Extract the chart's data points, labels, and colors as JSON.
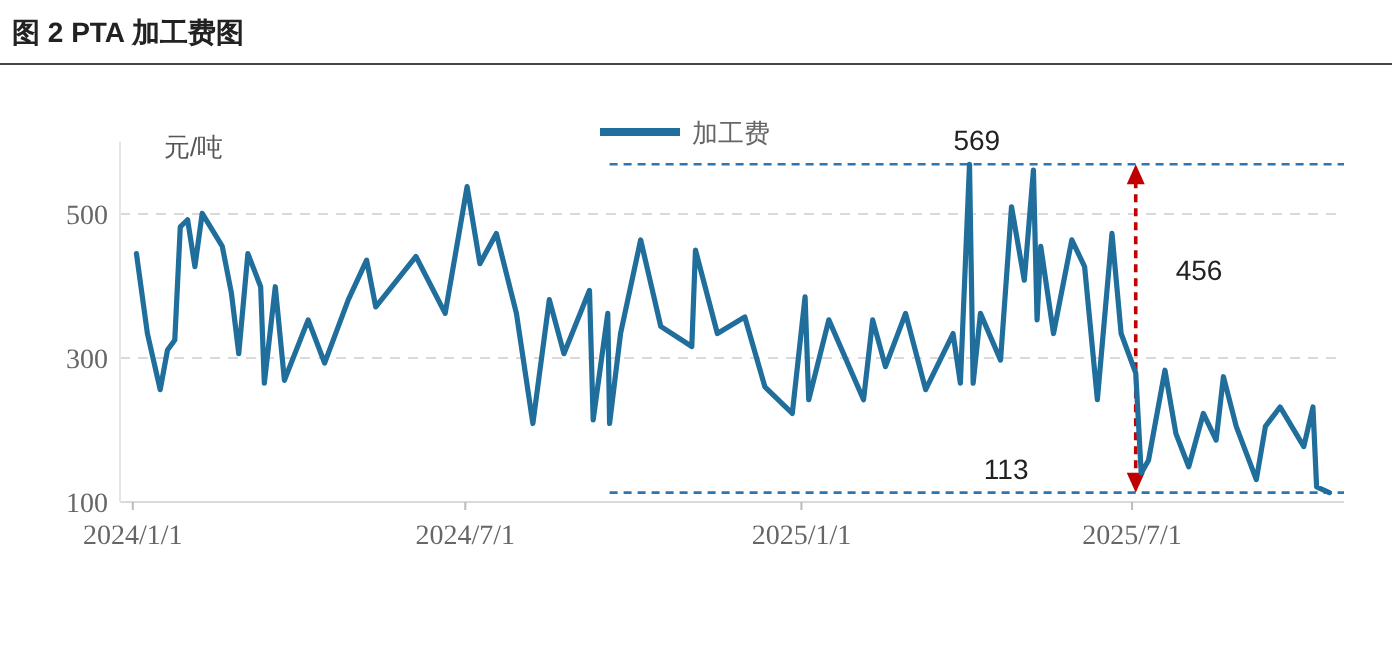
{
  "chart_data": {
    "type": "line",
    "title": "图 2 PTA 加工费图",
    "ylabel": "元/吨",
    "x": [
      "2024-01-03",
      "2024-01-09",
      "2024-01-16",
      "2024-01-20",
      "2024-01-24",
      "2024-01-27",
      "2024-01-31",
      "2024-02-04",
      "2024-02-08",
      "2024-02-19",
      "2024-02-24",
      "2024-02-28",
      "2024-03-04",
      "2024-03-11",
      "2024-03-13",
      "2024-03-19",
      "2024-03-24",
      "2024-04-06",
      "2024-04-15",
      "2024-04-28",
      "2024-05-08",
      "2024-05-13",
      "2024-06-04",
      "2024-06-20",
      "2024-07-02",
      "2024-07-09",
      "2024-07-18",
      "2024-07-29",
      "2024-08-07",
      "2024-08-16",
      "2024-08-24",
      "2024-09-07",
      "2024-09-09",
      "2024-09-17",
      "2024-09-18",
      "2024-09-24",
      "2024-10-05",
      "2024-10-16",
      "2024-11-02",
      "2024-11-04",
      "2024-11-16",
      "2024-12-01",
      "2024-12-12",
      "2024-12-27",
      "2025-01-03",
      "2025-01-05",
      "2025-01-16",
      "2025-02-04",
      "2025-02-09",
      "2025-02-16",
      "2025-02-27",
      "2025-03-10",
      "2025-03-25",
      "2025-03-29",
      "2025-04-03",
      "2025-04-05",
      "2025-04-09",
      "2025-04-20",
      "2025-04-26",
      "2025-05-03",
      "2025-05-08",
      "2025-05-10",
      "2025-05-12",
      "2025-05-19",
      "2025-05-29",
      "2025-06-05",
      "2025-06-12",
      "2025-06-20",
      "2025-06-25",
      "2025-07-03",
      "2025-07-06",
      "2025-07-10",
      "2025-07-19",
      "2025-07-25",
      "2025-08-01",
      "2025-08-09",
      "2025-08-16",
      "2025-08-20",
      "2025-08-27",
      "2025-09-07",
      "2025-09-12",
      "2025-09-20",
      "2025-10-03",
      "2025-10-08",
      "2025-10-10",
      "2025-10-17"
    ],
    "series": [
      {
        "name": "加工费",
        "color": "#1f6e9c",
        "values": [
          445,
          334,
          256,
          311,
          325,
          482,
          492,
          427,
          501,
          455,
          390,
          306,
          445,
          399,
          265,
          399,
          269,
          353,
          293,
          381,
          436,
          371,
          441,
          362,
          538,
          431,
          473,
          362,
          209,
          381,
          306,
          394,
          214,
          362,
          209,
          334,
          464,
          344,
          316,
          450,
          334,
          357,
          260,
          223,
          385,
          242,
          353,
          242,
          353,
          288,
          362,
          256,
          334,
          265,
          569,
          265,
          362,
          297,
          510,
          408,
          561,
          353,
          455,
          334,
          464,
          427,
          242,
          473,
          334,
          279,
          140,
          158,
          283,
          195,
          149,
          223,
          186,
          274,
          205,
          131,
          205,
          232,
          177,
          232,
          121,
          113
        ]
      }
    ],
    "xlim": [
      "2023-12-25",
      "2025-10-25"
    ],
    "xticks": [
      {
        "value": "2024-01-01",
        "label": "2024/1/1"
      },
      {
        "value": "2024-07-01",
        "label": "2024/7/1"
      },
      {
        "value": "2025-01-01",
        "label": "2025/1/1"
      },
      {
        "value": "2025-07-01",
        "label": "2025/7/1"
      }
    ],
    "ylim": [
      100,
      600
    ],
    "yticks": [
      100,
      300,
      500
    ],
    "grid": "y",
    "legend": "top",
    "line_style": "solid",
    "marker": "none",
    "ref_lines": [
      {
        "axis": "y",
        "value": 569,
        "label": "569",
        "color": "#2e75b6",
        "line_style": "dashed"
      },
      {
        "axis": "y",
        "value": 113,
        "label": "113",
        "color": "#2e75b6",
        "line_style": "dashed"
      },
      {
        "axis": "x",
        "value": "2025-07-03",
        "label": "456",
        "color": "#c00000",
        "line_style": "dashed"
      }
    ]
  }
}
